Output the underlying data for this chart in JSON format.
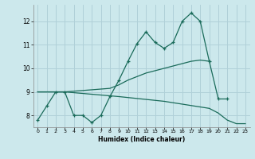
{
  "xlabel": "Humidex (Indice chaleur)",
  "bg_color": "#cce8ec",
  "grid_color": "#b0d0d8",
  "line_color": "#1a6b5a",
  "xlim": [
    -0.5,
    23.5
  ],
  "ylim": [
    7.5,
    12.7
  ],
  "yticks": [
    8,
    9,
    10,
    11,
    12
  ],
  "xticks": [
    0,
    1,
    2,
    3,
    4,
    5,
    6,
    7,
    8,
    9,
    10,
    11,
    12,
    13,
    14,
    15,
    16,
    17,
    18,
    19,
    20,
    21,
    22,
    23
  ],
  "series_main": {
    "x": [
      0,
      1,
      2,
      3,
      4,
      5,
      6,
      7,
      8,
      9,
      10,
      11,
      12,
      13,
      14,
      15,
      16,
      17,
      18,
      19,
      20,
      21
    ],
    "y": [
      7.8,
      8.4,
      9.0,
      9.0,
      8.0,
      8.0,
      7.7,
      8.0,
      8.8,
      9.5,
      10.3,
      11.05,
      11.55,
      11.1,
      10.85,
      11.1,
      12.0,
      12.35,
      12.0,
      10.3,
      8.7,
      8.7
    ]
  },
  "series_upper": {
    "x": [
      0,
      2,
      3,
      8,
      9,
      10,
      11,
      12,
      13,
      14,
      15,
      16,
      17,
      18,
      19
    ],
    "y": [
      9.0,
      9.0,
      9.0,
      9.15,
      9.3,
      9.5,
      9.65,
      9.8,
      9.9,
      10.0,
      10.1,
      10.2,
      10.3,
      10.35,
      10.3
    ]
  },
  "series_lower": {
    "x": [
      0,
      2,
      3,
      9,
      14,
      19,
      20,
      21,
      22,
      23
    ],
    "y": [
      9.0,
      9.0,
      9.0,
      8.8,
      8.6,
      8.3,
      8.1,
      7.8,
      7.65,
      7.65
    ]
  }
}
